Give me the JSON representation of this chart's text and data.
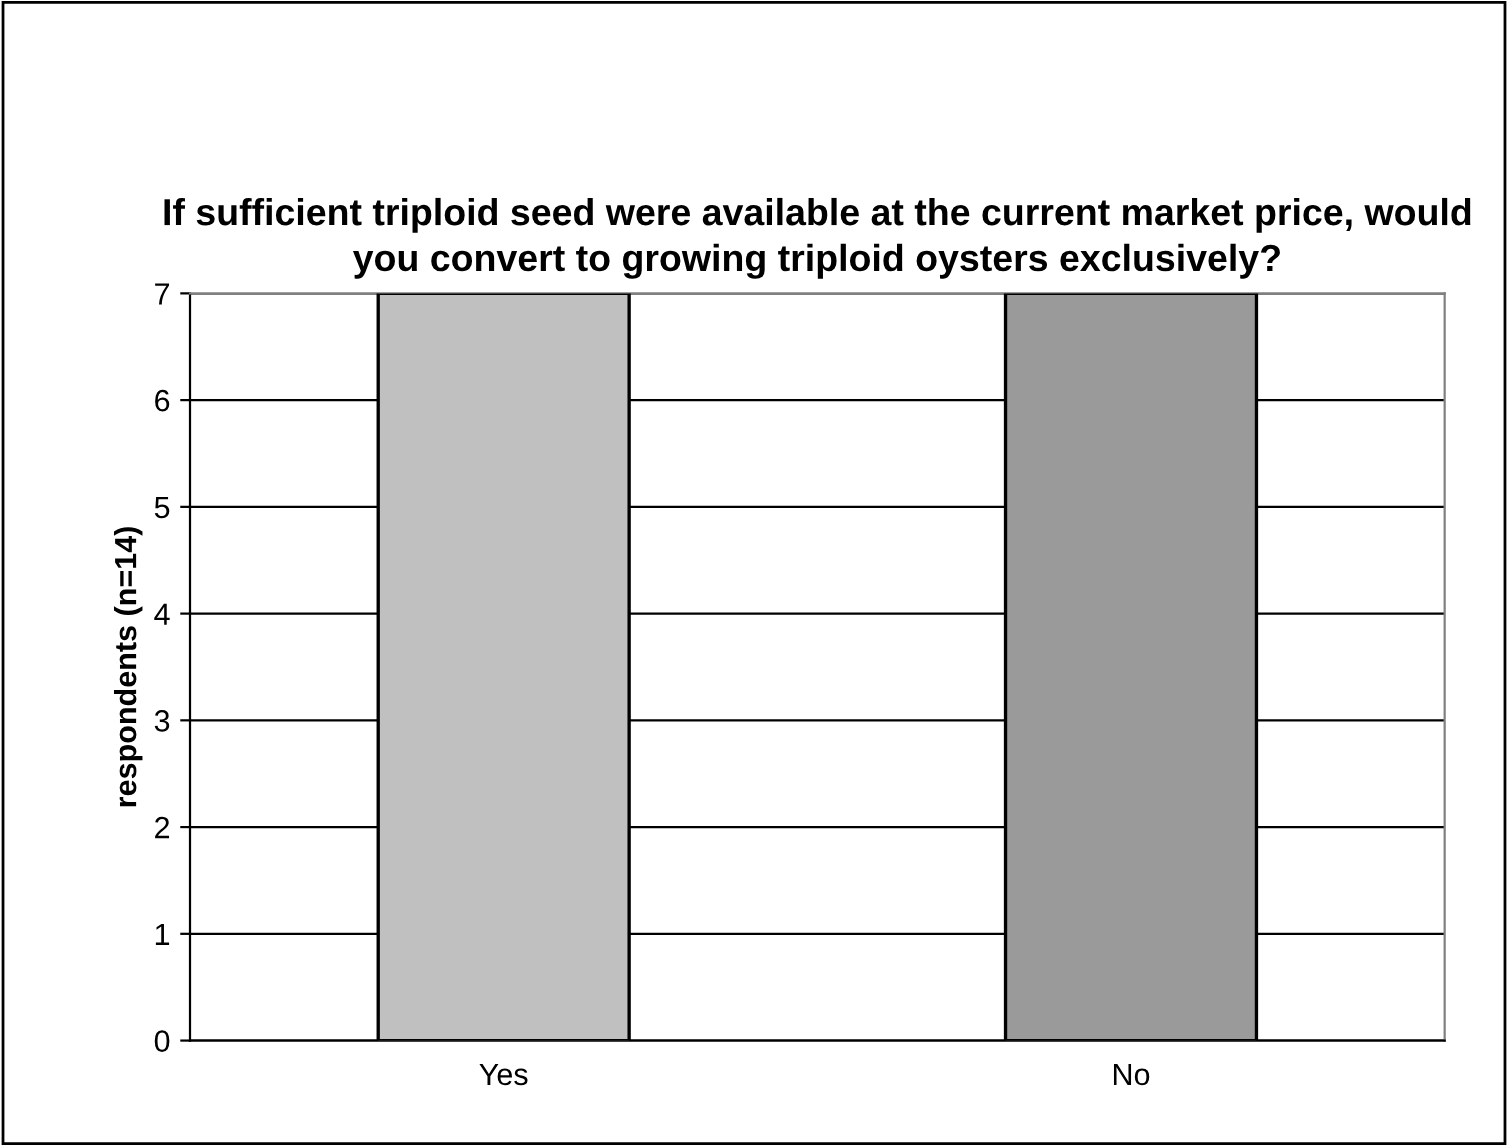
{
  "chart_data": {
    "type": "bar",
    "title": "If sufficient triploid seed were available at the current market price, would you convert to growing triploid oysters exclusively?",
    "ylabel": "respondents (n=14)",
    "categories": [
      "Yes",
      "No"
    ],
    "values": [
      7,
      7
    ],
    "colors": [
      "#c0c0c0",
      "#9a9a9a"
    ],
    "ylim": [
      0,
      7
    ],
    "yticks": [
      0,
      1,
      2,
      3,
      4,
      5,
      6,
      7
    ],
    "grid": "y",
    "legend": false
  }
}
